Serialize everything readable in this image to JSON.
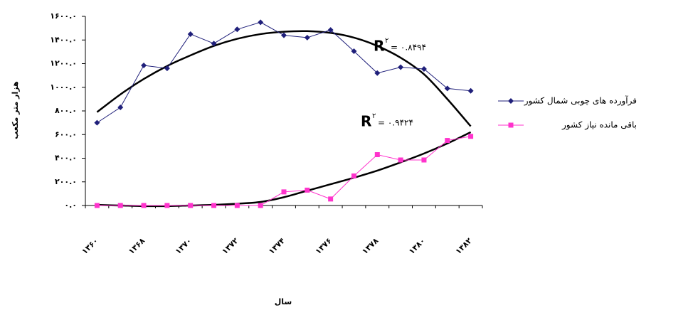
{
  "chart_data": {
    "type": "line",
    "y_label": "هزار متر مکعب",
    "x_label": "سال",
    "categories": [
      "۱۳۶۰",
      null,
      "۱۳۶۸",
      null,
      "۱۳۷۰",
      null,
      "۱۳۷۲",
      null,
      "۱۳۷۴",
      null,
      "۱۳۷۶",
      null,
      "۱۳۷۸",
      null,
      "۱۳۸۰",
      null,
      "۱۳۸۲"
    ],
    "series": [
      {
        "name": "فرآورده های چوبی شمال کشور",
        "color": "#1f1f7a",
        "marker": "diamond",
        "values": [
          700,
          830,
          1185,
          1160,
          1450,
          1370,
          1490,
          1550,
          1440,
          1420,
          1485,
          1305,
          1120,
          1170,
          1155,
          990,
          970
        ]
      },
      {
        "name": "باقی مانده نیاز کشور",
        "color": "#ff33cc",
        "marker": "square",
        "values": [
          0,
          0,
          0,
          0,
          0,
          0,
          0,
          0,
          115,
          130,
          55,
          250,
          430,
          385,
          385,
          550,
          585
        ]
      }
    ],
    "trendlines": [
      {
        "color": "#000000",
        "values": [
          790,
          940,
          1070,
          1180,
          1270,
          1350,
          1410,
          1450,
          1470,
          1475,
          1460,
          1420,
          1350,
          1250,
          1110,
          900,
          670
        ],
        "r2": {
          "symbol": "R",
          "sup": "۲",
          "text": "= ۰.۸۴۹۴"
        }
      },
      {
        "color": "#000000",
        "values": [
          5,
          0,
          -5,
          -5,
          0,
          5,
          15,
          30,
          70,
          125,
          180,
          235,
          295,
          365,
          440,
          525,
          620
        ],
        "r2": {
          "symbol": "R",
          "sup": "۲",
          "text": "= ۰.۹۴۲۴"
        }
      }
    ],
    "ylim": [
      0,
      1600
    ],
    "yticks": [
      {
        "value": 0,
        "label": "۰.۰"
      },
      {
        "value": 200,
        "label": "۲۰۰.۰"
      },
      {
        "value": 400,
        "label": "۴۰۰.۰"
      },
      {
        "value": 600,
        "label": "۶۰۰.۰"
      },
      {
        "value": 800,
        "label": "۸۰۰.۰"
      },
      {
        "value": 1000,
        "label": "۱۰۰۰.۰"
      },
      {
        "value": 1200,
        "label": "۱۲۰۰.۰"
      },
      {
        "value": 1400,
        "label": "۱۴۰۰.۰"
      },
      {
        "value": 1600,
        "label": "۱۶۰۰.۰"
      }
    ],
    "grid": false,
    "legend": "right"
  }
}
